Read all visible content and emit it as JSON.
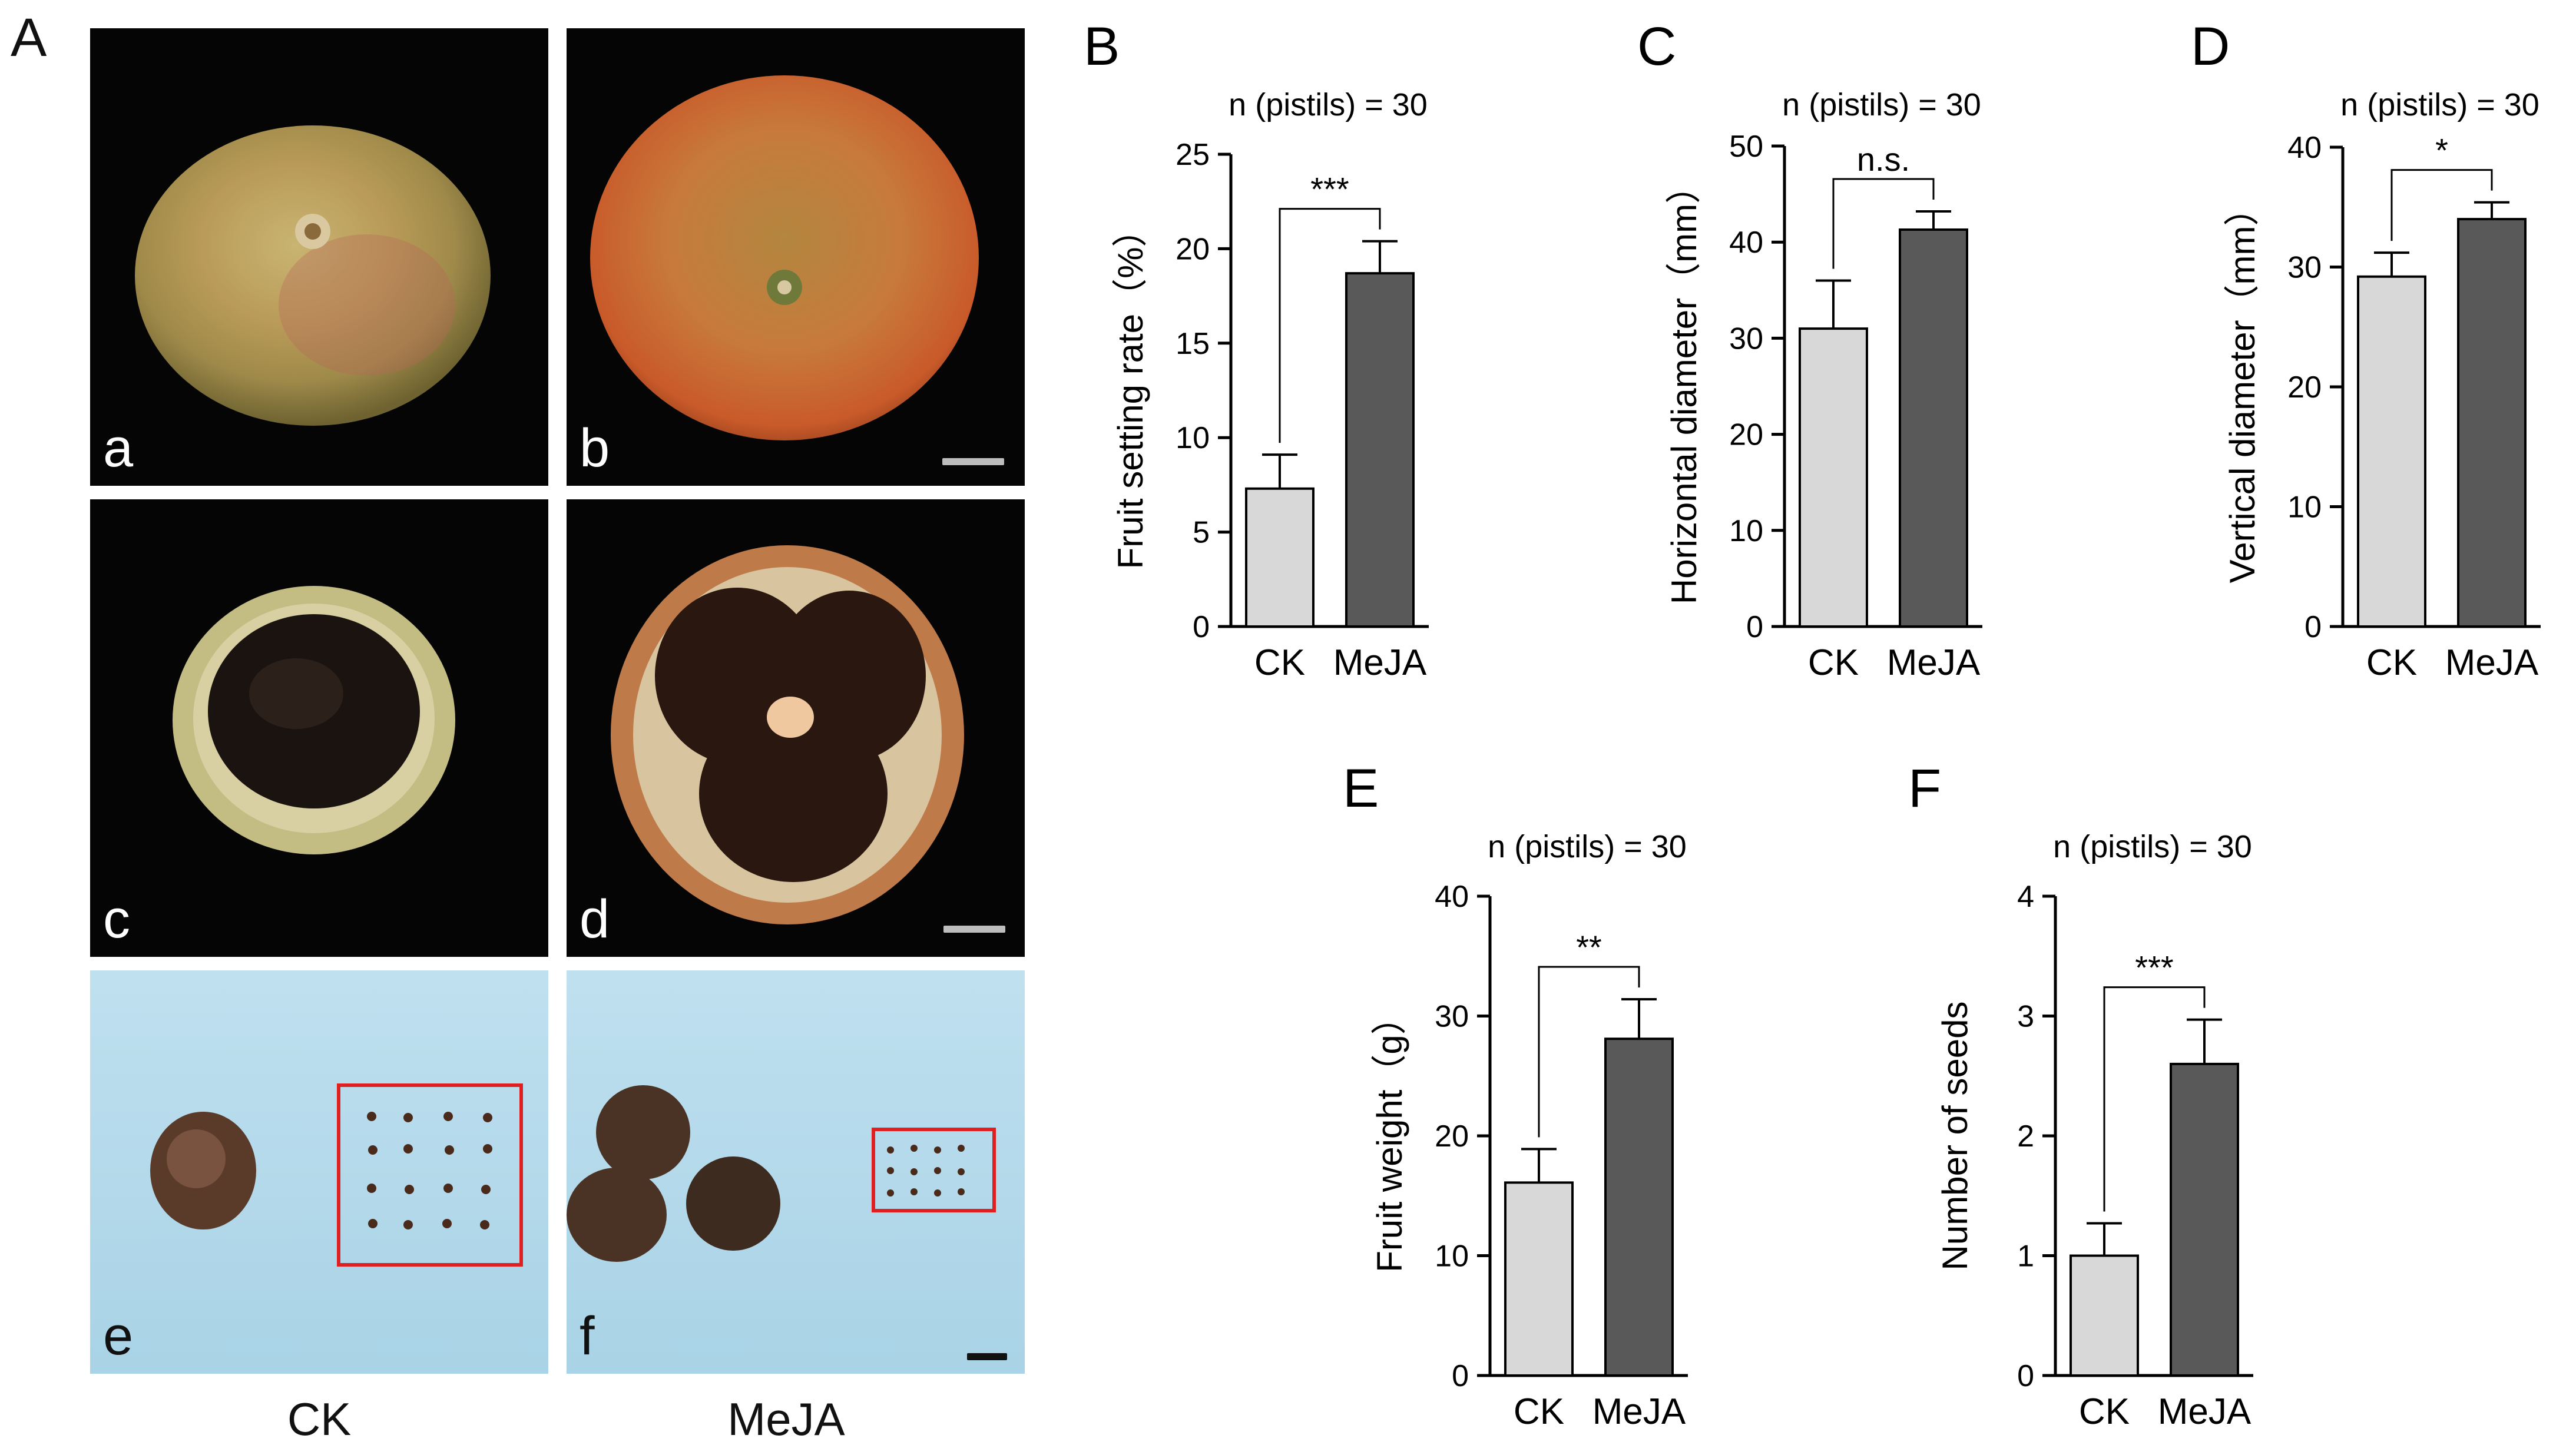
{
  "figure": {
    "panel_A_letter": "A",
    "photo_letters": [
      "a",
      "b",
      "c",
      "d",
      "e",
      "f"
    ],
    "condition_labels": [
      "CK",
      "MeJA"
    ]
  },
  "colors": {
    "ck_bar": "#d8d8d8",
    "meja_bar": "#595959",
    "bar_edge": "#000000",
    "photo_dark_bg": "#050505",
    "photo_blue_bg": "#b9dcec",
    "seed_box": "#e02020"
  },
  "chart_data": [
    {
      "panel": "B",
      "type": "bar",
      "title": "n (pistils) = 30",
      "ylabel": "Fruit setting rate（%）",
      "categories": [
        "CK",
        "MeJA"
      ],
      "values": [
        7.3,
        18.7
      ],
      "errors": [
        1.8,
        1.7
      ],
      "ylim": [
        0,
        25
      ],
      "yticks": [
        0,
        5,
        10,
        15,
        20,
        25
      ],
      "significance": "***"
    },
    {
      "panel": "C",
      "type": "bar",
      "title": "n (pistils) = 30",
      "ylabel": "Horizontal diameter（mm）",
      "categories": [
        "CK",
        "MeJA"
      ],
      "values": [
        31.0,
        41.3
      ],
      "errors": [
        5.0,
        1.9
      ],
      "ylim": [
        0,
        50
      ],
      "yticks": [
        0,
        10,
        20,
        30,
        40,
        50
      ],
      "significance": "n.s."
    },
    {
      "panel": "D",
      "type": "bar",
      "title": "n (pistils) = 30",
      "ylabel": "Vertical diameter（mm）",
      "categories": [
        "CK",
        "MeJA"
      ],
      "values": [
        29.2,
        34.0
      ],
      "errors": [
        2.0,
        1.4
      ],
      "ylim": [
        0,
        40
      ],
      "yticks": [
        0,
        10,
        20,
        30,
        40
      ],
      "significance": "*"
    },
    {
      "panel": "E",
      "type": "bar",
      "title": "n (pistils) = 30",
      "ylabel": "Fruit weight（g）",
      "categories": [
        "CK",
        "MeJA"
      ],
      "values": [
        16.1,
        28.1
      ],
      "errors": [
        2.8,
        3.3
      ],
      "ylim": [
        0,
        40
      ],
      "yticks": [
        0,
        10,
        20,
        30,
        40
      ],
      "significance": "**"
    },
    {
      "panel": "F",
      "type": "bar",
      "title": "n (pistils) = 30",
      "ylabel": "Number of seeds",
      "categories": [
        "CK",
        "MeJA"
      ],
      "values": [
        1.0,
        2.6
      ],
      "errors": [
        0.27,
        0.37
      ],
      "ylim": [
        0,
        4
      ],
      "yticks": [
        0,
        1,
        2,
        3,
        4
      ],
      "significance": "***"
    }
  ]
}
